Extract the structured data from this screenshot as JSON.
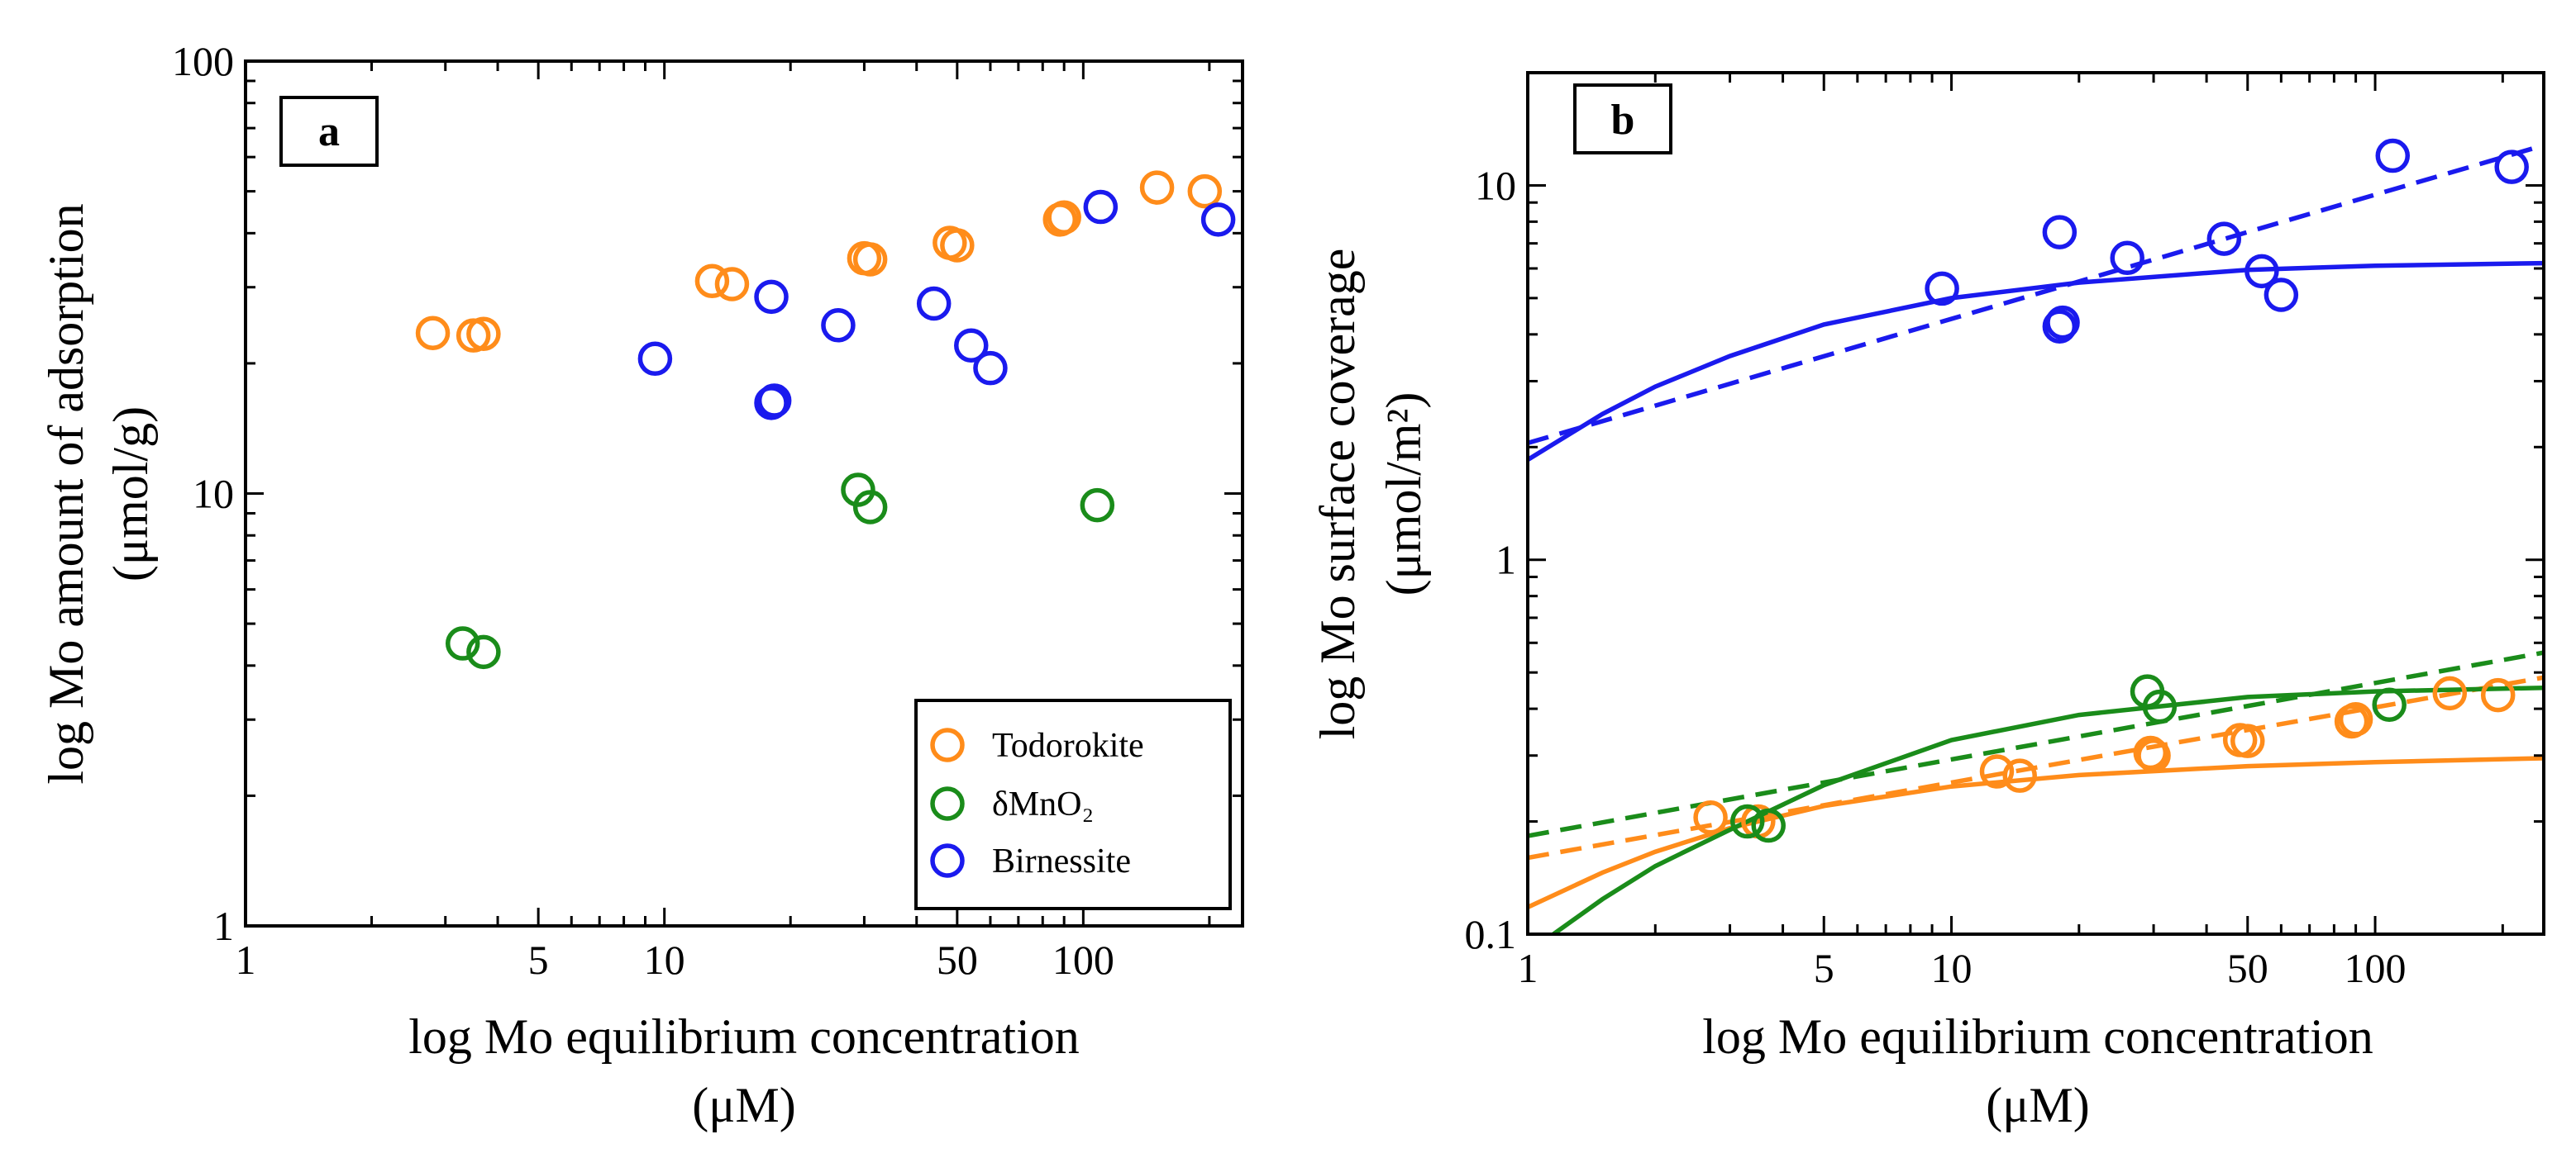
{
  "chart_data": [
    {
      "type": "scatter",
      "panel": "a",
      "xlabel": "log Mo equilibrium  concentration",
      "xunit": "(μM)",
      "ylabel": "log Mo amount of adsorption",
      "yunit": "(μmol/g)",
      "xscale": "log",
      "yscale": "log",
      "xlim": [
        1,
        240
      ],
      "ylim": [
        1,
        100
      ],
      "xticks": [
        {
          "v": 1,
          "label": "1"
        },
        {
          "v": 5,
          "label": "5"
        },
        {
          "v": 10,
          "label": "10"
        },
        {
          "v": 50,
          "label": "50"
        },
        {
          "v": 100,
          "label": "100"
        }
      ],
      "yticks": [
        {
          "v": 1,
          "label": "1"
        },
        {
          "v": 10,
          "label": "10"
        },
        {
          "v": 100,
          "label": "100"
        }
      ],
      "legend_position": "bottom-right",
      "series": [
        {
          "name": "Todorokite",
          "color": "#ff8c1a",
          "points": [
            [
              2.8,
              23.5
            ],
            [
              3.5,
              23.2
            ],
            [
              3.7,
              23.4
            ],
            [
              13,
              31
            ],
            [
              14.5,
              30.5
            ],
            [
              30,
              35
            ],
            [
              31,
              34.8
            ],
            [
              48,
              38
            ],
            [
              50,
              37.5
            ],
            [
              88,
              43
            ],
            [
              90,
              43.5
            ],
            [
              150,
              51
            ],
            [
              195,
              50
            ]
          ]
        },
        {
          "name": "δMnO₂",
          "color": "#1a8c1a",
          "points": [
            [
              3.3,
              4.5
            ],
            [
              3.7,
              4.3
            ],
            [
              29,
              10.2
            ],
            [
              31,
              9.3
            ],
            [
              108,
              9.4
            ]
          ]
        },
        {
          "name": "Birnessite",
          "color": "#1a1aee",
          "points": [
            [
              9.5,
              20.5
            ],
            [
              18,
              28.5
            ],
            [
              18,
              16.2
            ],
            [
              18.3,
              16.4
            ],
            [
              26,
              24.5
            ],
            [
              44,
              27.5
            ],
            [
              54,
              22
            ],
            [
              60,
              19.5
            ],
            [
              110,
              46
            ],
            [
              210,
              43
            ]
          ]
        }
      ]
    },
    {
      "type": "scatter",
      "panel": "b",
      "xlabel": "log Mo equilibrium  concentration",
      "xunit": "(μM)",
      "ylabel": "log Mo surface coverage",
      "yunit": "(μmol/m²)",
      "xscale": "log",
      "yscale": "log",
      "xlim": [
        1,
        250
      ],
      "ylim": [
        0.1,
        20
      ],
      "xticks": [
        {
          "v": 1,
          "label": "1"
        },
        {
          "v": 5,
          "label": "5"
        },
        {
          "v": 10,
          "label": "10"
        },
        {
          "v": 50,
          "label": "50"
        },
        {
          "v": 100,
          "label": "100"
        }
      ],
      "yticks": [
        {
          "v": 0.1,
          "label": "0.1"
        },
        {
          "v": 1,
          "label": "1"
        },
        {
          "v": 10,
          "label": "10"
        }
      ],
      "series": [
        {
          "name": "Todorokite",
          "color": "#ff8c1a",
          "points": [
            [
              2.7,
              0.205
            ],
            [
              3.5,
              0.2
            ],
            [
              12.8,
              0.272
            ],
            [
              14.5,
              0.265
            ],
            [
              29.5,
              0.305
            ],
            [
              30,
              0.3
            ],
            [
              48,
              0.33
            ],
            [
              50,
              0.328
            ],
            [
              88,
              0.37
            ],
            [
              90,
              0.375
            ],
            [
              150,
              0.44
            ],
            [
              195,
              0.435
            ]
          ],
          "fits": [
            {
              "kind": "langmuir",
              "style": "solid",
              "curve": [
                [
                  1,
                  0.118
                ],
                [
                  1.5,
                  0.146
                ],
                [
                  2,
                  0.166
                ],
                [
                  3,
                  0.192
                ],
                [
                  5,
                  0.22
                ],
                [
                  10,
                  0.248
                ],
                [
                  20,
                  0.266
                ],
                [
                  50,
                  0.281
                ],
                [
                  100,
                  0.288
                ],
                [
                  250,
                  0.295
                ]
              ]
            },
            {
              "kind": "freundlich",
              "style": "dashed",
              "curve": [
                [
                  1,
                  0.16
                ],
                [
                  250,
                  0.485
                ]
              ]
            }
          ]
        },
        {
          "name": "δMnO₂",
          "color": "#1a8c1a",
          "points": [
            [
              3.3,
              0.2
            ],
            [
              3.7,
              0.195
            ],
            [
              29,
              0.445
            ],
            [
              31,
              0.405
            ],
            [
              108,
              0.41
            ]
          ],
          "fits": [
            {
              "kind": "langmuir",
              "style": "solid",
              "curve": [
                [
                  1.15,
                  0.1
                ],
                [
                  1.5,
                  0.124
                ],
                [
                  2,
                  0.152
                ],
                [
                  3,
                  0.19
                ],
                [
                  5,
                  0.25
                ],
                [
                  10,
                  0.33
                ],
                [
                  20,
                  0.385
                ],
                [
                  50,
                  0.43
                ],
                [
                  100,
                  0.445
                ],
                [
                  250,
                  0.455
                ]
              ]
            },
            {
              "kind": "freundlich",
              "style": "dashed",
              "curve": [
                [
                  1,
                  0.183
                ],
                [
                  250,
                  0.565
                ]
              ]
            }
          ]
        },
        {
          "name": "Birnessite",
          "color": "#1a1aee",
          "points": [
            [
              9.5,
              5.3
            ],
            [
              18,
              7.5
            ],
            [
              18,
              4.2
            ],
            [
              18.3,
              4.3
            ],
            [
              26,
              6.4
            ],
            [
              44,
              7.2
            ],
            [
              54,
              5.9
            ],
            [
              60,
              5.1
            ],
            [
              110,
              12
            ],
            [
              210,
              11.2
            ]
          ],
          "fits": [
            {
              "kind": "langmuir",
              "style": "solid",
              "curve": [
                [
                  1,
                  1.85
                ],
                [
                  1.5,
                  2.45
                ],
                [
                  2,
                  2.9
                ],
                [
                  3,
                  3.5
                ],
                [
                  5,
                  4.25
                ],
                [
                  10,
                  5.0
                ],
                [
                  20,
                  5.5
                ],
                [
                  50,
                  5.95
                ],
                [
                  100,
                  6.1
                ],
                [
                  250,
                  6.2
                ]
              ]
            },
            {
              "kind": "freundlich",
              "style": "dashed",
              "curve": [
                [
                  1,
                  2.05
                ],
                [
                  250,
                  12.8
                ]
              ]
            }
          ]
        }
      ]
    }
  ]
}
